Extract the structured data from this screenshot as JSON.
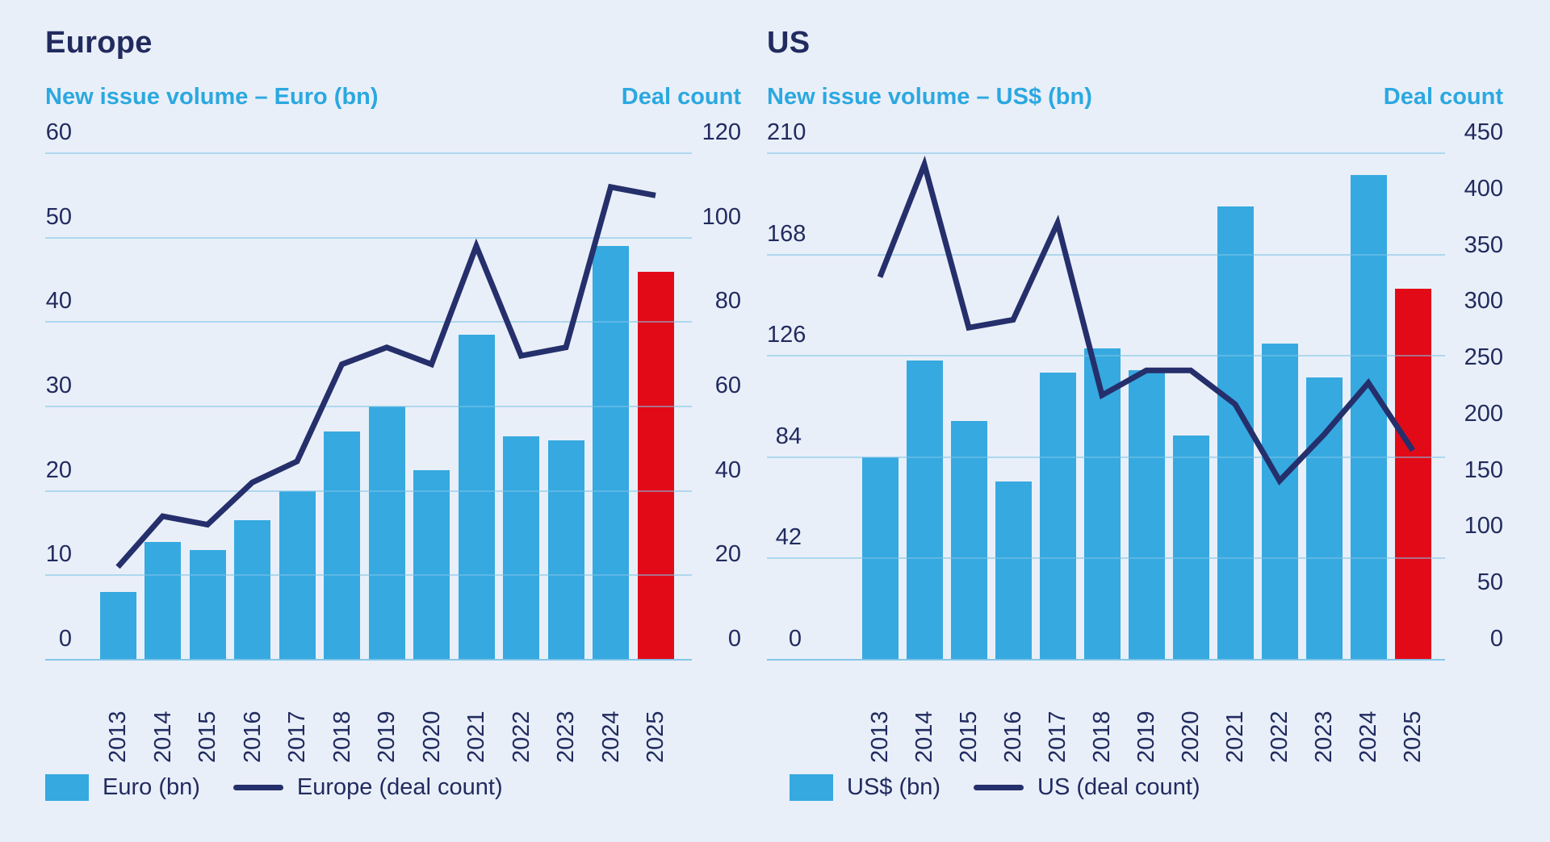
{
  "page": {
    "background": "#e9eff8"
  },
  "colors": {
    "bar_blue": "#36a9e0",
    "highlight_red": "#e30a18",
    "line_navy": "#252f6b",
    "text_navy": "#212b5f",
    "accent_cyan": "#2ba8e0",
    "gridline_blue": "#7ec3e8"
  },
  "chart_data": [
    {
      "type": "bar",
      "subtype": "bar+line dual axis",
      "title": "Europe",
      "categories": [
        "2013",
        "2014",
        "2015",
        "2016",
        "2017",
        "2018",
        "2019",
        "2020",
        "2021",
        "2022",
        "2023",
        "2024",
        "2025"
      ],
      "left_axis": {
        "title": "New issue volume – Euro (bn)",
        "min": 0,
        "max": 60,
        "step": 10
      },
      "right_axis": {
        "title": "Deal count",
        "min": 0,
        "max": 120,
        "step": 20
      },
      "series": [
        {
          "name": "Euro (bn)",
          "type": "bar",
          "axis": "left",
          "values": [
            8,
            14,
            13,
            16.5,
            20,
            27,
            30,
            22.5,
            38.5,
            26.5,
            26,
            49,
            46
          ]
        },
        {
          "name": "Europe (deal count)",
          "type": "line",
          "axis": "right",
          "values": [
            22,
            34,
            32,
            42,
            47,
            70,
            74,
            70,
            98,
            72,
            74,
            112,
            110
          ]
        }
      ],
      "highlight_years": [
        "2025"
      ],
      "grid": "horizontal",
      "legend_position": "bottom-left"
    },
    {
      "type": "bar",
      "subtype": "bar+line dual axis",
      "title": "US",
      "categories": [
        "2013",
        "2014",
        "2015",
        "2016",
        "2017",
        "2018",
        "2019",
        "2020",
        "2021",
        "2022",
        "2023",
        "2024",
        "2025"
      ],
      "left_axis": {
        "title": "New issue volume – US$ (bn)",
        "min": 0,
        "max": 210,
        "step": 42
      },
      "right_axis": {
        "title": "Deal count",
        "min": 0,
        "max": 450,
        "step": 50
      },
      "series": [
        {
          "name": "US$ (bn)",
          "type": "bar",
          "axis": "left",
          "values": [
            84,
            124,
            99,
            74,
            119,
            129,
            120,
            93,
            188,
            131,
            117,
            201,
            154
          ]
        },
        {
          "name": "US (deal count)",
          "type": "line",
          "axis": "right",
          "values": [
            340,
            440,
            295,
            302,
            388,
            235,
            257,
            257,
            227,
            159,
            200,
            246,
            186
          ]
        }
      ],
      "highlight_years": [
        "2025"
      ],
      "grid": "horizontal",
      "legend_position": "bottom-left"
    }
  ]
}
